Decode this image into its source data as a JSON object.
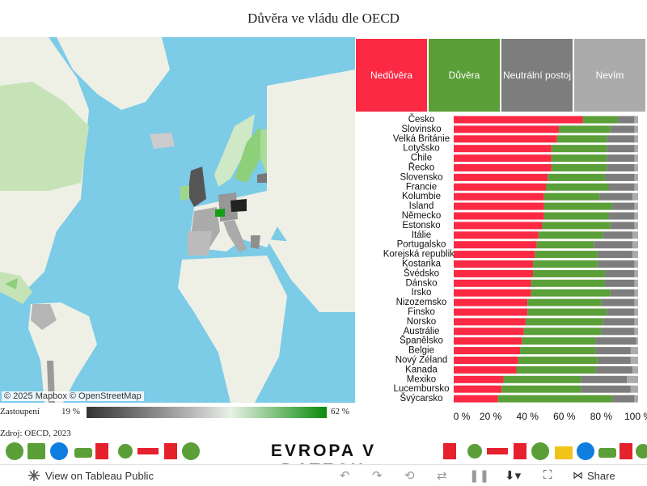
{
  "title": "Důvěra ve vládu dle OECD",
  "map": {
    "attribution": "© 2025 Mapbox  © OpenStreetMap"
  },
  "legend_scale": {
    "label": "Zastoupení",
    "min": "19 %",
    "max": "62 %"
  },
  "source": "Zdroj: OECD, 2023",
  "legend": [
    {
      "label": "Nedůvěra",
      "color": "#fb2943"
    },
    {
      "label": "Důvěra",
      "color": "#5a9f38"
    },
    {
      "label": "Neutrální postoj",
      "color": "#7d7d7d"
    },
    {
      "label": "Nevím",
      "color": "#ababab"
    }
  ],
  "chart_data": {
    "type": "bar",
    "orientation": "horizontal",
    "stacked": true,
    "normalized": true,
    "categories": [
      "Česko",
      "Slovinsko",
      "Velká Británie",
      "Lotyšsko",
      "Chile",
      "Řecko",
      "Slovensko",
      "Francie",
      "Kolumbie",
      "Island",
      "Německo",
      "Estonsko",
      "Itálie",
      "Portugalsko",
      "Korejská republika",
      "Kostarika",
      "Švédsko",
      "Dánsko",
      "Irsko",
      "Nizozemsko",
      "Finsko",
      "Norsko",
      "Austrálie",
      "Španělsko",
      "Belgie",
      "Nový Zéland",
      "Kanada",
      "Mexiko",
      "Lucembursko",
      "Švýcarsko"
    ],
    "series": [
      {
        "name": "Nedůvěra",
        "values": [
          70,
          57,
          56,
          53,
          53,
          53,
          51,
          50,
          49,
          49,
          49,
          48,
          46,
          45,
          44,
          43,
          43,
          42,
          42,
          40,
          40,
          39,
          38,
          37,
          36,
          35,
          34,
          27,
          26,
          24
        ]
      },
      {
        "name": "Důvěra",
        "values": [
          19,
          28,
          27,
          30,
          30,
          30,
          31,
          34,
          30,
          37,
          35,
          37,
          35,
          31,
          34,
          35,
          39,
          40,
          43,
          40,
          43,
          42,
          42,
          40,
          41,
          43,
          43,
          42,
          43,
          62
        ]
      },
      {
        "name": "Neutrální postoj",
        "values": [
          9,
          13,
          15,
          15,
          15,
          15,
          16,
          14,
          18,
          12,
          14,
          13,
          16,
          21,
          19,
          20,
          16,
          16,
          13,
          18,
          15,
          17,
          18,
          22,
          19,
          18,
          20,
          25,
          27,
          12
        ]
      },
      {
        "name": "Nevím",
        "values": [
          2,
          2,
          2,
          2,
          2,
          2,
          2,
          2,
          3,
          2,
          2,
          2,
          3,
          3,
          3,
          2,
          2,
          2,
          2,
          2,
          2,
          2,
          2,
          1,
          4,
          4,
          3,
          6,
          4,
          2
        ]
      }
    ],
    "x_ticks": [
      "0 %",
      "20 %",
      "40 %",
      "60 %",
      "80 %",
      "100 %"
    ],
    "xlim": [
      0,
      100
    ]
  },
  "brand": "EVROPA V DATECH",
  "footer": {
    "view_label": "View on Tableau Public",
    "share_label": "Share"
  }
}
